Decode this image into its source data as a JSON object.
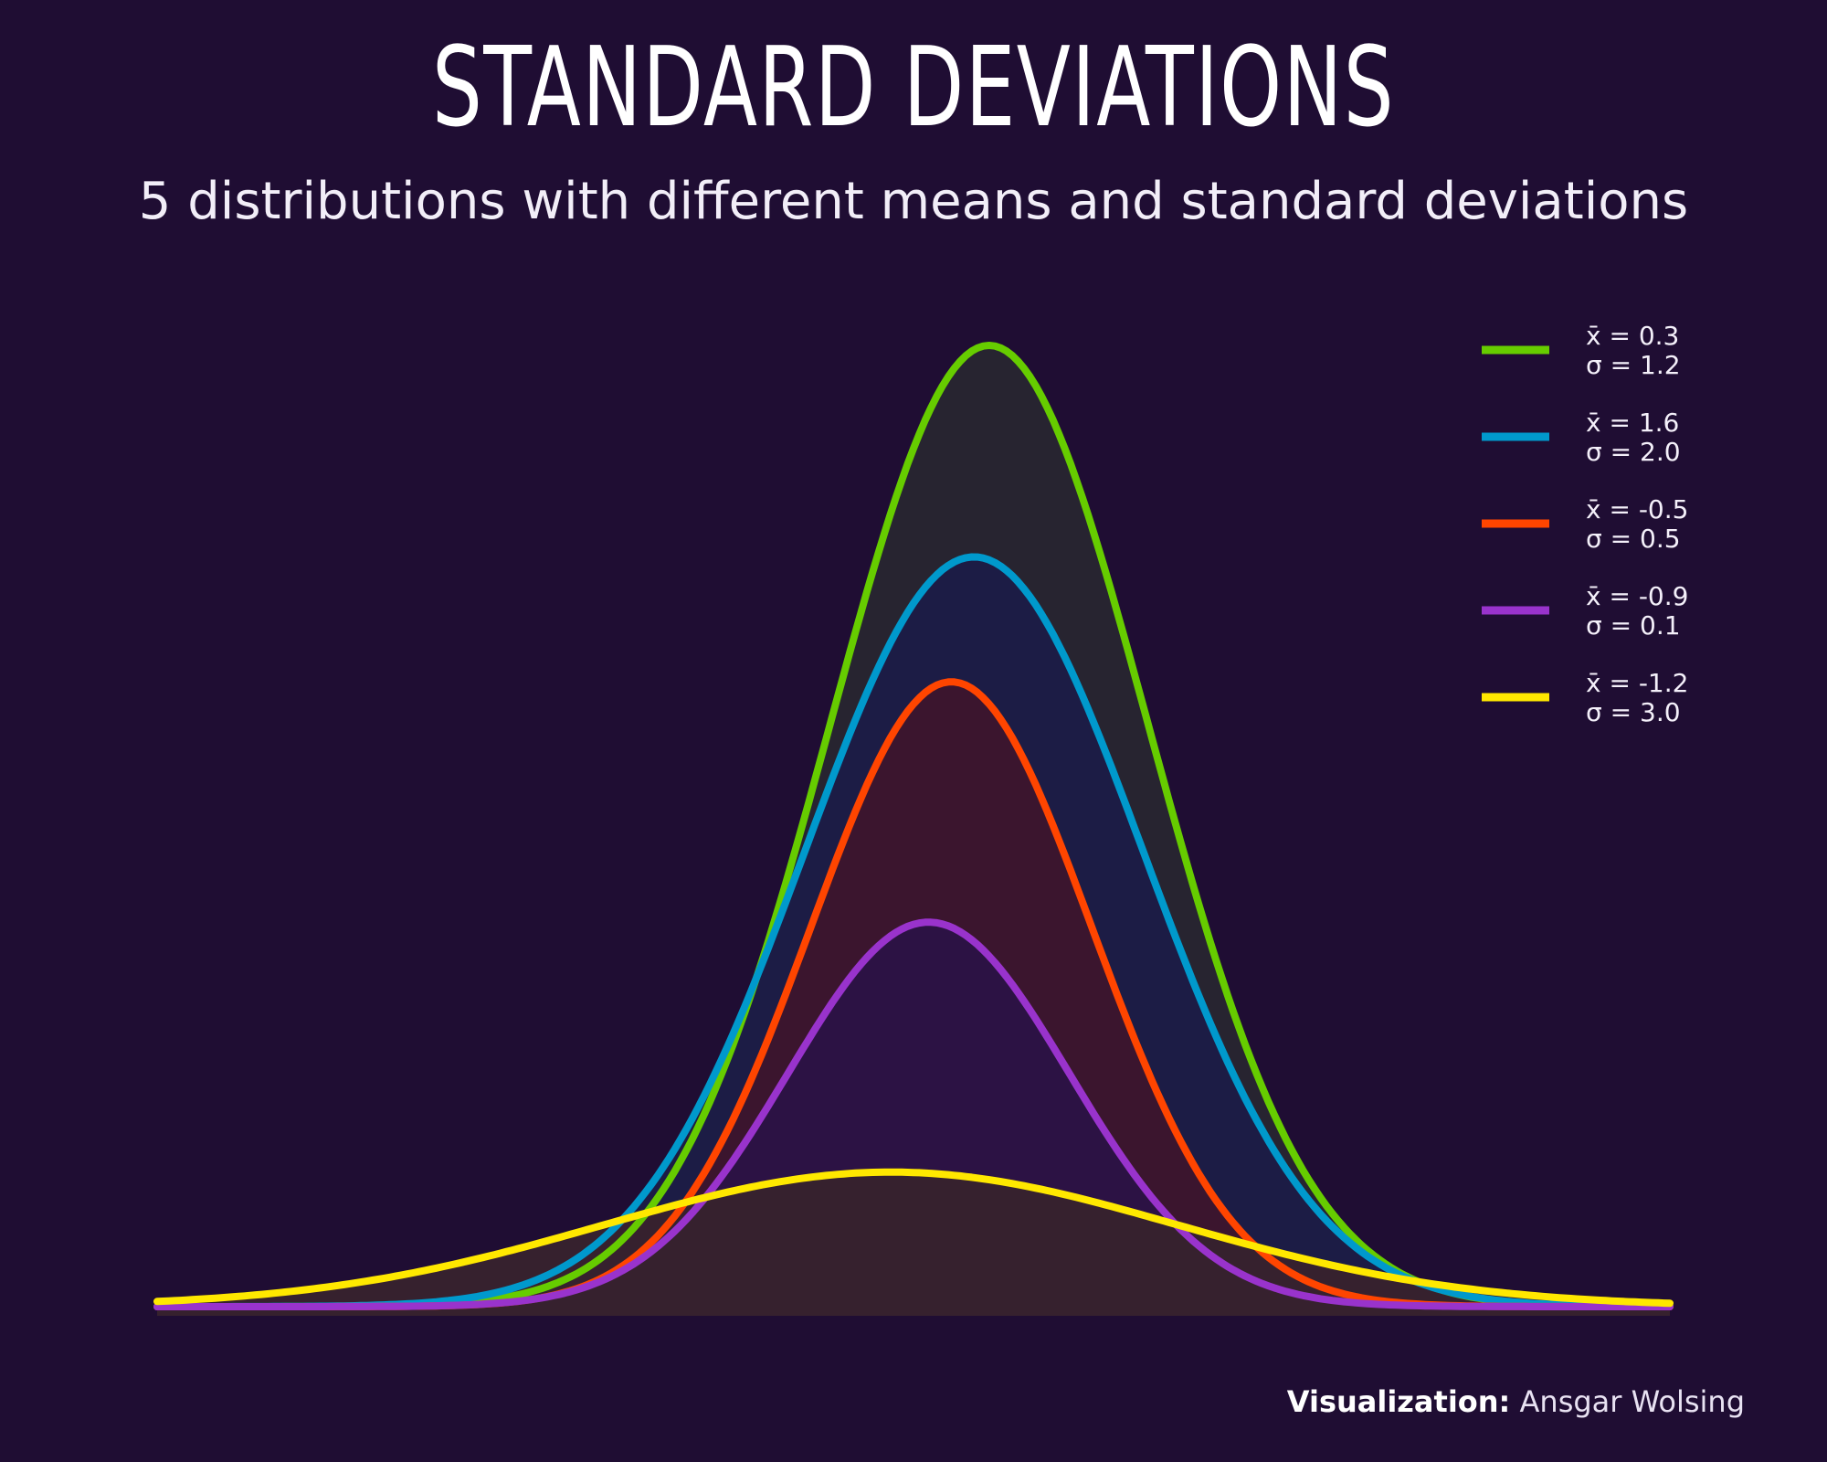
{
  "title": "STANDARD DEVIATIONS",
  "subtitle": "5 distributions with different means and standard deviations",
  "caption": {
    "label": "Visualization:",
    "author": "Ansgar Wolsing"
  },
  "chart_data": {
    "type": "area",
    "title": "STANDARD DEVIATIONS",
    "subtitle": "5 distributions with different means and standard deviations",
    "xlabel": "",
    "ylabel": "",
    "axes_visible": false,
    "grid": false,
    "legend_position": "top-right",
    "series": [
      {
        "name": "x̄ = 0.3\nσ = 1.2",
        "mean_label": "x̄ = 0.3",
        "sd_label": "σ = 1.2",
        "color": "#66cc00",
        "fill": "#272430",
        "peak": 1.0,
        "peak_x": 0.55,
        "width": 0.105
      },
      {
        "name": "x̄ = 1.6\nσ = 2.0",
        "mean_label": "x̄ = 1.6",
        "sd_label": "σ = 2.0",
        "color": "#0099cc",
        "fill": "#1c1c45",
        "peak": 0.78,
        "peak_x": 0.54,
        "width": 0.112
      },
      {
        "name": "x̄ = -0.5\nσ = 0.5",
        "mean_label": "x̄ = -0.5",
        "sd_label": "σ = 0.5",
        "color": "#ff4500",
        "fill": "#3b152e",
        "peak": 0.65,
        "peak_x": 0.525,
        "width": 0.093
      },
      {
        "name": "x̄ = -0.9\nσ = 0.1",
        "mean_label": "x̄ = -0.9",
        "sd_label": "σ = 0.1",
        "color": "#9933cc",
        "fill": "#2c1244",
        "peak": 0.4,
        "peak_x": 0.51,
        "width": 0.093
      },
      {
        "name": "x̄ = -1.2\nσ = 3.0",
        "mean_label": "x̄ = -1.2",
        "sd_label": "σ = 3.0",
        "color": "#ffe800",
        "fill": "#36212e",
        "peak": 0.14,
        "peak_x": 0.485,
        "width": 0.19
      }
    ]
  }
}
